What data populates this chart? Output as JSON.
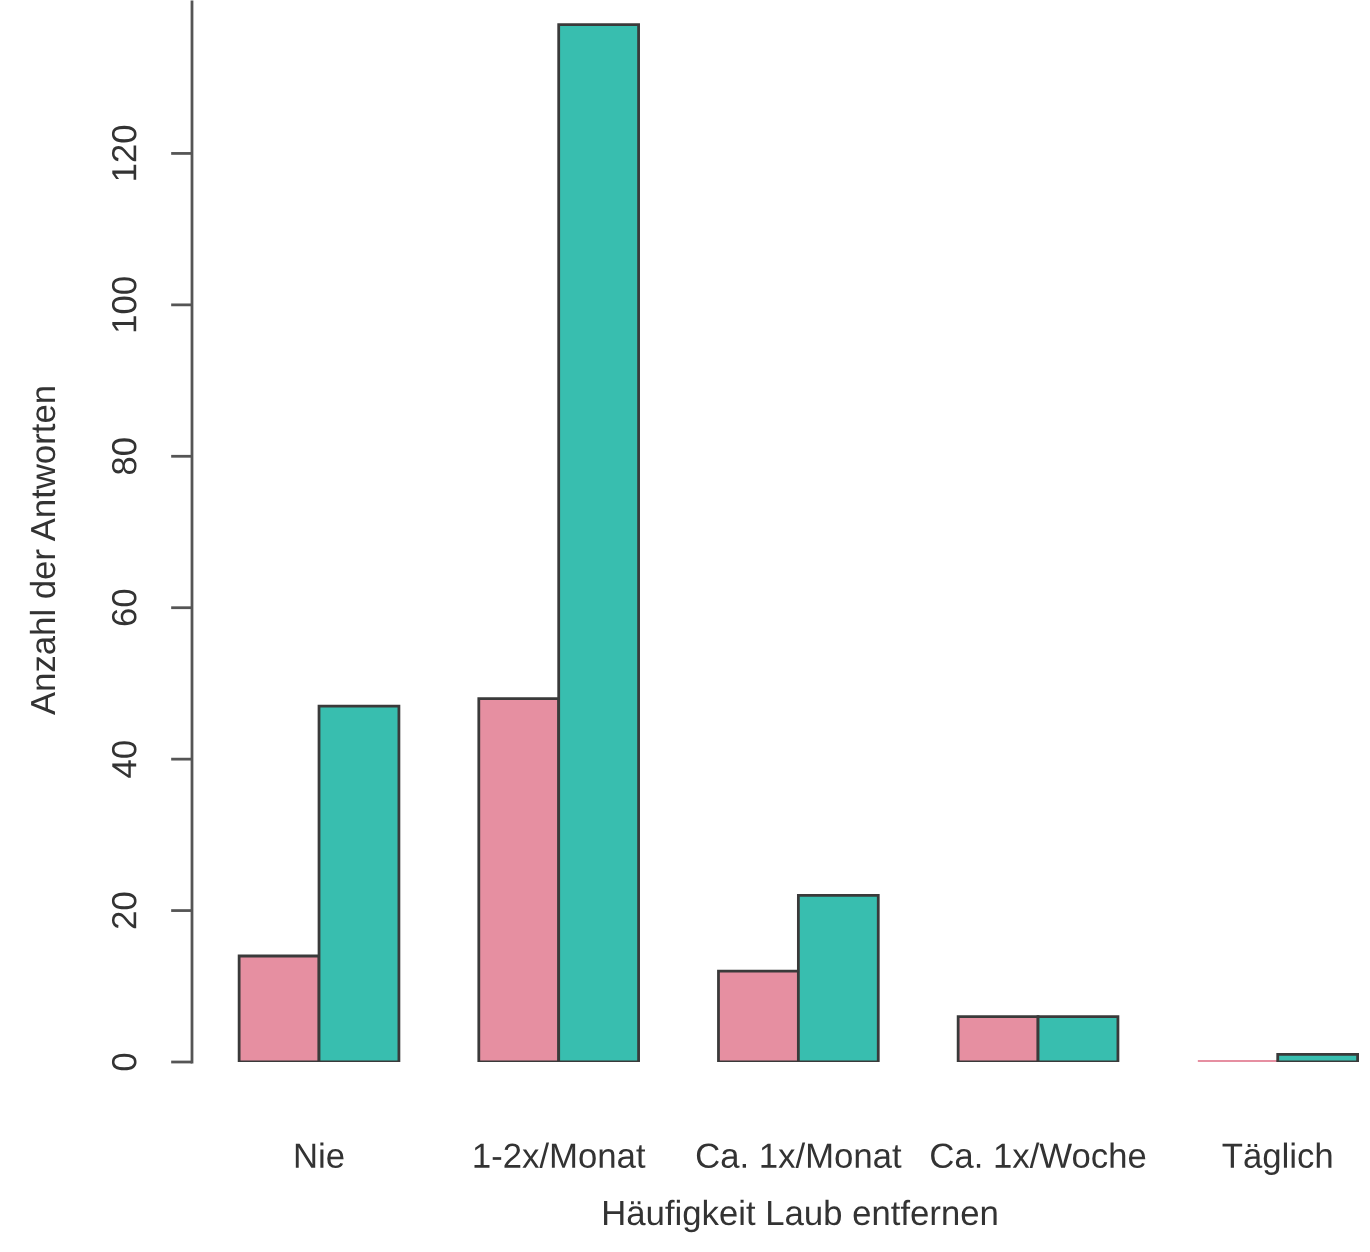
{
  "chart_data": {
    "type": "bar",
    "xlabel": "Häufigkeit Laub entfernen",
    "ylabel": "Anzahl der Antworten",
    "categories": [
      "Nie",
      "1-2x/Monat",
      "Ca. 1x/Monat",
      "Ca. 1x/Woche",
      "Täglich"
    ],
    "series": [
      {
        "color": "#e68fa1",
        "values": [
          14,
          48,
          12,
          6,
          0
        ]
      },
      {
        "color": "#38beaf",
        "values": [
          47,
          137,
          22,
          6,
          1
        ]
      }
    ],
    "ylim": [
      0,
      140
    ],
    "yticks": [
      0,
      20,
      40,
      60,
      80,
      100,
      120
    ]
  }
}
